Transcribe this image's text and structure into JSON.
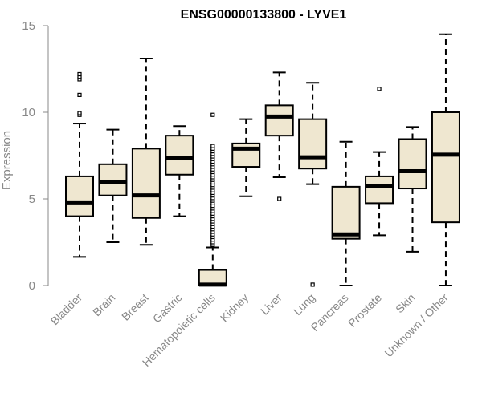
{
  "chart_data": {
    "type": "boxplot",
    "title": "ENSG00000133800 - LYVE1",
    "xlabel": "",
    "ylabel": "Expression",
    "ylim": [
      0,
      15
    ],
    "yticks": [
      0,
      5,
      10,
      15
    ],
    "categories": [
      "Bladder",
      "Brain",
      "Breast",
      "Gastric",
      "Hematopoietic cells",
      "Kidney",
      "Liver",
      "Lung",
      "Pancreas",
      "Prostate",
      "Skin",
      "Unknown / Other"
    ],
    "boxes": [
      {
        "name": "Bladder",
        "whisker_low": 1.65,
        "q1": 4.0,
        "median": 4.8,
        "q3": 6.3,
        "whisker_high": 9.35,
        "outliers": [
          9.85,
          9.95,
          11.0,
          11.9,
          12.05,
          12.2
        ]
      },
      {
        "name": "Brain",
        "whisker_low": 2.5,
        "q1": 5.2,
        "median": 5.95,
        "q3": 7.0,
        "whisker_high": 9.0,
        "outliers": []
      },
      {
        "name": "Breast",
        "whisker_low": 2.35,
        "q1": 3.9,
        "median": 5.2,
        "q3": 7.9,
        "whisker_high": 13.1,
        "outliers": []
      },
      {
        "name": "Gastric",
        "whisker_low": 4.0,
        "q1": 6.4,
        "median": 7.35,
        "q3": 8.65,
        "whisker_high": 9.2,
        "outliers": []
      },
      {
        "name": "Hematopoietic cells",
        "whisker_low": 0.0,
        "q1": 0.0,
        "median": 0.05,
        "q3": 0.9,
        "whisker_high": 2.2,
        "outliers": [
          2.35,
          2.5,
          2.65,
          2.8,
          2.95,
          3.1,
          3.25,
          3.4,
          3.55,
          3.7,
          3.85,
          4.0,
          4.15,
          4.3,
          4.45,
          4.6,
          4.75,
          4.9,
          5.05,
          5.2,
          5.35,
          5.5,
          5.65,
          5.8,
          5.95,
          6.1,
          6.25,
          6.4,
          6.55,
          6.7,
          6.85,
          7.0,
          7.15,
          7.3,
          7.45,
          7.6,
          7.75,
          7.9,
          8.05,
          9.85
        ]
      },
      {
        "name": "Kidney",
        "whisker_low": 5.15,
        "q1": 6.85,
        "median": 7.9,
        "q3": 8.2,
        "whisker_high": 9.6,
        "outliers": []
      },
      {
        "name": "Liver",
        "whisker_low": 6.25,
        "q1": 8.65,
        "median": 9.75,
        "q3": 10.4,
        "whisker_high": 12.3,
        "outliers": [
          5.0
        ]
      },
      {
        "name": "Lung",
        "whisker_low": 5.85,
        "q1": 6.75,
        "median": 7.4,
        "q3": 9.6,
        "whisker_high": 11.7,
        "outliers": [
          0.05
        ]
      },
      {
        "name": "Pancreas",
        "whisker_low": 0.0,
        "q1": 2.7,
        "median": 2.95,
        "q3": 5.7,
        "whisker_high": 8.3,
        "outliers": []
      },
      {
        "name": "Prostate",
        "whisker_low": 2.9,
        "q1": 4.75,
        "median": 5.75,
        "q3": 6.3,
        "whisker_high": 7.7,
        "outliers": [
          11.35
        ]
      },
      {
        "name": "Skin",
        "whisker_low": 1.95,
        "q1": 5.6,
        "median": 6.6,
        "q3": 8.45,
        "whisker_high": 9.15,
        "outliers": []
      },
      {
        "name": "Unknown / Other",
        "whisker_low": 0.0,
        "q1": 3.65,
        "median": 7.55,
        "q3": 10.0,
        "whisker_high": 14.5,
        "outliers": []
      }
    ],
    "grid": false,
    "colors": {
      "box_fill": "#efe7d0",
      "stroke": "#000000",
      "axis_text": "#888888",
      "axis_line": "#888888"
    }
  }
}
